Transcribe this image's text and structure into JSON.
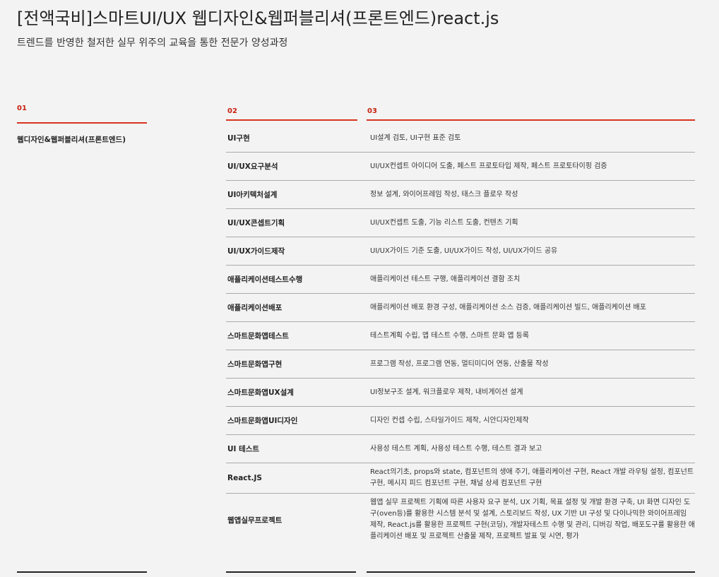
{
  "header": {
    "title": "[전액국비]스마트UI/UX 웹디자인&웹퍼블리셔(프론트엔드)react.js",
    "subtitle": "트렌드를 반영한 철저한 실무 위주의 교육을 통한 전문가 양성과정"
  },
  "table": {
    "column_numbers": [
      "01",
      "02",
      "03"
    ],
    "category": "웹디자인&웹퍼블리셔(프론트엔드)",
    "rows": [
      [
        "UI구현",
        "UI설계 검토, UI구현 표준 검토"
      ],
      [
        "UI/UX요구분석",
        "UI/UX컨셉트 아이디어 도출, 페스트 프로토타입 제작, 페스트 프로토타이핑 검증"
      ],
      [
        "UI아키텍처설계",
        "정보 설계, 와이어프레임 작성, 태스크 플로우 작성"
      ],
      [
        "UI/UX콘셉트기획",
        "UI/UX컨셉트 도출, 기능 리스트 도출, 컨텐츠 기획"
      ],
      [
        "UI/UX가이드제작",
        "UI/UX가이드 기준 도출, UI/UX가이드 작성, UI/UX가이드 공유"
      ],
      [
        "애플리케이션테스트수행",
        "애플리케이션 테스트 구행, 애플리케이션 결함 조치"
      ],
      [
        "애플리케이션배포",
        "애플리케이션 배포 환경 구성, 애플리케이션 소스 검증, 애플리케이션 빌드, 애플리케이션 배포"
      ],
      [
        "스마트문화앱테스트",
        "테스트계획 수립, 앱 테스트 수행, 스마트 문화 앱 등록"
      ],
      [
        "스마트문화앱구현",
        "프로그램 작성, 프로그램 연동, 멀티미디어 연동, 산출물 작성"
      ],
      [
        "스마트문화앱UX설계",
        "UI정보구조 설계, 워크플로우 제작, 내비게이션 설계"
      ],
      [
        "스마트문화앱UI디자인",
        "디자인 컨셉 수립, 스타일가이드 제작, 시안디자인제작"
      ],
      [
        "UI 테스트",
        "사용성 테스트 계획, 사용성 테스트 수행, 테스트 결과 보고"
      ],
      [
        "React.JS",
        "React의기초, props와 state, 컴포넌트의 생애 주기, 애플리케이션 구현, React 개발 라우팅 설정, 컴포넌트 구현, 메시지 피드 컴포넌트 구현, 채널 상세 컴포넌트 구현"
      ],
      [
        "웹앱실무프로젝트",
        "웹앱 실무 프로젝트 기획에 따른 사용자 요구 분석, UX 기획, 목표 설정 및 개발 환경 구축, UI 화면 디자인 도구(oven등)를 활용한 시스템 분석 및 설계, 스토리보드 작성, UX 기반 UI 구성 및 다이나믹한 와이어프레임 제작, React.js를 활용한 프로젝트 구현(코딩), 개발자테스트 수행 및 관리, 디버깅 작업, 배포도구를 활용한 애플리케이션 배포 및 프로젝트 산출물 제작, 프로젝트 발표 및 시연, 평가"
      ]
    ]
  }
}
